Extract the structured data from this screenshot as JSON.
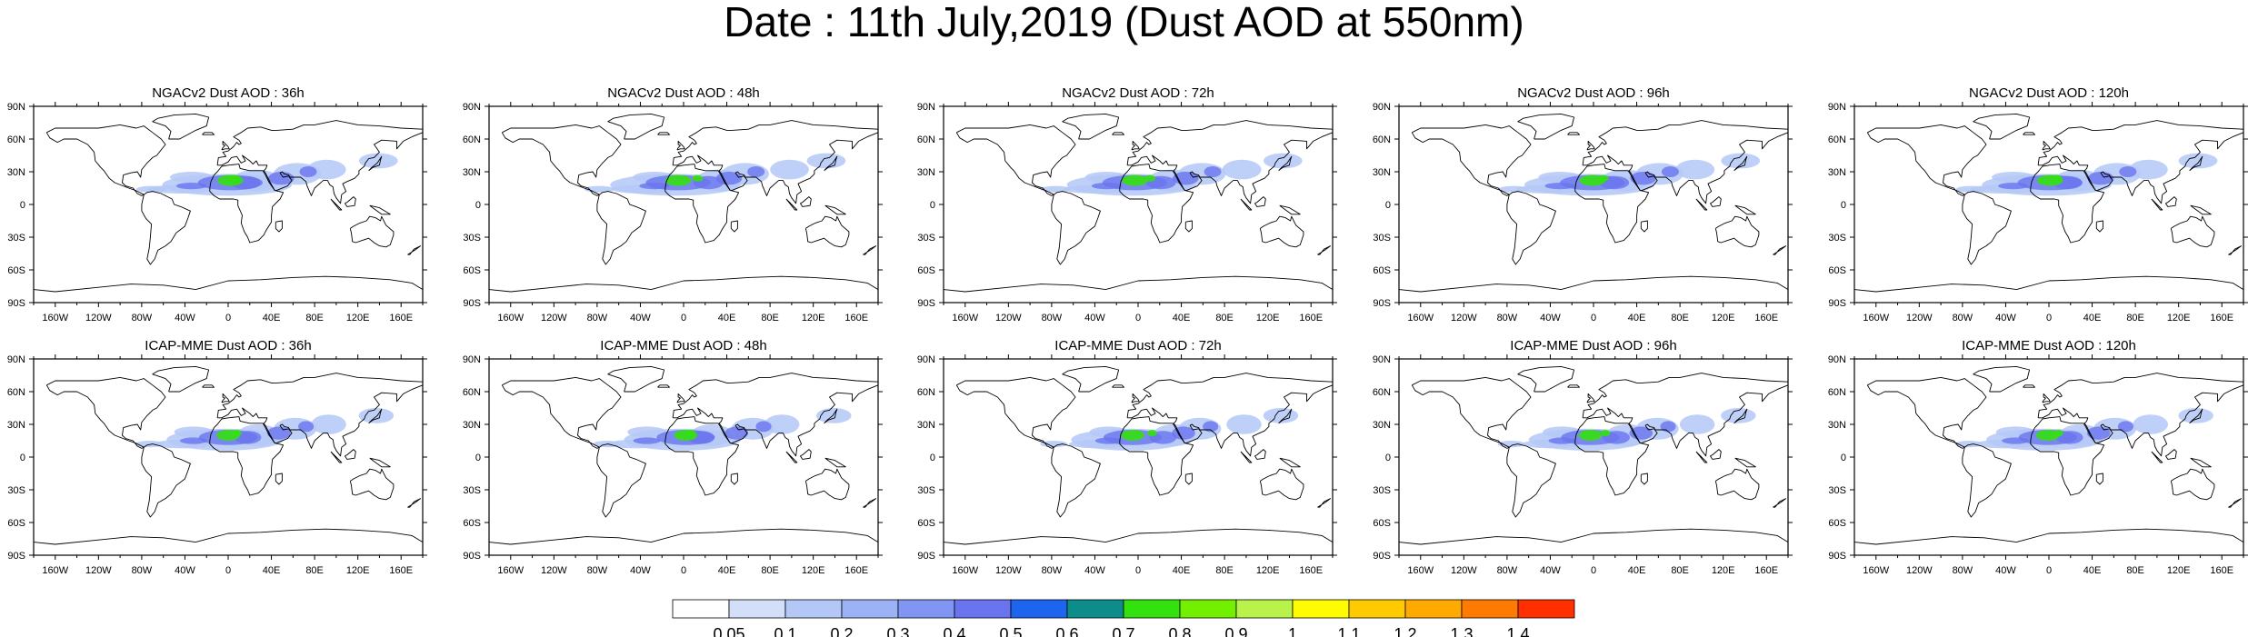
{
  "title": "Date : 11th July,2019 (Dust AOD at 550nm)",
  "lat_labels": [
    "90N",
    "60N",
    "30N",
    "0",
    "30S",
    "60S",
    "90S"
  ],
  "lon_labels": [
    "160W",
    "120W",
    "80W",
    "40W",
    "0",
    "40E",
    "80E",
    "120E",
    "160E"
  ],
  "rows": [
    {
      "model": "NGACv2",
      "panels": [
        {
          "title": "NGACv2 Dust AOD : 36h",
          "lead": "36h"
        },
        {
          "title": "NGACv2 Dust AOD : 48h",
          "lead": "48h"
        },
        {
          "title": "NGACv2 Dust AOD : 72h",
          "lead": "72h"
        },
        {
          "title": "NGACv2 Dust AOD : 96h",
          "lead": "96h"
        },
        {
          "title": "NGACv2 Dust AOD : 120h",
          "lead": "120h"
        }
      ]
    },
    {
      "model": "ICAP-MME",
      "panels": [
        {
          "title": "ICAP-MME Dust AOD : 36h",
          "lead": "36h"
        },
        {
          "title": "ICAP-MME Dust AOD : 48h",
          "lead": "48h"
        },
        {
          "title": "ICAP-MME Dust AOD : 72h",
          "lead": "72h"
        },
        {
          "title": "ICAP-MME Dust AOD : 96h",
          "lead": "96h"
        },
        {
          "title": "ICAP-MME Dust AOD : 120h",
          "lead": "120h"
        }
      ]
    }
  ],
  "colorbar": {
    "labels": [
      "0.05",
      "0.1",
      "0.2",
      "0.3",
      "0.4",
      "0.5",
      "0.6",
      "0.7",
      "0.8",
      "0.9",
      "1",
      "1.1",
      "1.2",
      "1.3",
      "1.4"
    ],
    "colors": [
      "#ffffff",
      "#d3def9",
      "#b4c8f7",
      "#9bb2f5",
      "#8196f2",
      "#6a74ee",
      "#1d64ef",
      "#0d8c8c",
      "#33e10e",
      "#73f000",
      "#b8f24a",
      "#fffc00",
      "#ffcb00",
      "#ffaa00",
      "#ff7a00",
      "#ff2f00"
    ]
  },
  "style": {
    "land_outline": "#000000",
    "dust_low": "#b4c8f7",
    "dust_mid": "#6a74ee",
    "dust_high": "#33e10e"
  }
}
